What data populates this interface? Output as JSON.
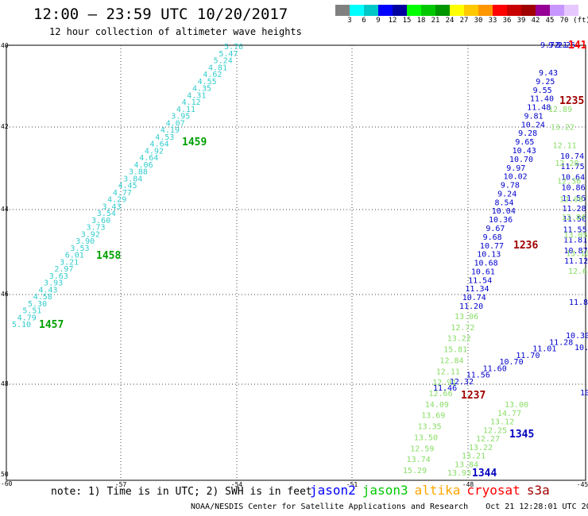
{
  "header": {
    "title": "12:00 – 23:59 UTC 10/20/2017",
    "subtitle": "12 hour collection of altimeter wave heights"
  },
  "legend": {
    "unit": "(ft)",
    "colors": [
      "#808080",
      "#00ffff",
      "#00c8c8",
      "#0000ff",
      "#0000a0",
      "#00ff00",
      "#00c800",
      "#009600",
      "#ffff00",
      "#ffc800",
      "#ff9600",
      "#ff0000",
      "#c80000",
      "#a00000",
      "#960096",
      "#c896ff",
      "#e6c8ff",
      "#ffffff"
    ],
    "labels": [
      "3",
      "6",
      "9",
      "12",
      "15",
      "18",
      "21",
      "24",
      "27",
      "30",
      "33",
      "36",
      "39",
      "42",
      "45",
      "70"
    ]
  },
  "axes": {
    "lon_labels": [
      "-57",
      "-54",
      "-51",
      "-48",
      "-45"
    ],
    "lat_labels": [
      "40",
      "42",
      "44",
      "46",
      "48",
      "50"
    ],
    "corner_labels": [
      "-60",
      "-60"
    ]
  },
  "track_times": [
    {
      "text": "1459",
      "color": "#00a000"
    },
    {
      "text": "1458",
      "color": "#00a000"
    },
    {
      "text": "1457",
      "color": "#00a000"
    },
    {
      "text": "1235",
      "color": "#a00000"
    },
    {
      "text": "1236",
      "color": "#a00000"
    },
    {
      "text": "1237",
      "color": "#a00000"
    },
    {
      "text": "1345",
      "color": "#0000c0"
    },
    {
      "text": "1344",
      "color": "#0000c0"
    },
    {
      "text": "141",
      "color": "#ff0000"
    }
  ],
  "tracks": {
    "cyan_track": [
      "5.76",
      "5.47",
      "5.24",
      "4.81",
      "4.62",
      "4.55",
      "4.35",
      "4.31",
      "4.12",
      "4.11",
      "3.95",
      "4.07",
      "4.19",
      "4.53",
      "4.64",
      "4.92",
      "4.64",
      "4.06",
      "3.88",
      "3.84",
      "4.45",
      "4.77",
      "4.29",
      "3.43",
      "3.54",
      "3.60",
      "3.73",
      "3.92",
      "3.90",
      "3.53",
      "6.01",
      "3.21",
      "2.97",
      "3.63",
      "3.93",
      "4.43",
      "4.58",
      "5.30",
      "5.51",
      "4.79",
      "5.10"
    ],
    "blue_track": [
      "9.43",
      "9.25",
      "9.55",
      "11.40",
      "11.48",
      "9.81",
      "10.24",
      "9.28",
      "9.65",
      "10.43",
      "10.70",
      "9.97",
      "10.02",
      "9.78",
      "9.24",
      "8.54",
      "10.04",
      "10.36",
      "9.67",
      "9.68",
      "10.77",
      "10.13",
      "10.68",
      "10.61",
      "11.54",
      "11.34",
      "10.74",
      "11.20"
    ],
    "green_track": [
      "13.06",
      "12.72",
      "13.22",
      "15.81",
      "12.84",
      "12.11",
      "12.91",
      "12.66",
      "14.09",
      "13.69",
      "13.35",
      "13.50",
      "12.59",
      "13.74",
      "15.29"
    ],
    "green_track2": [
      "13.00",
      "14.77",
      "13.12",
      "12.25",
      "12.27",
      "13.22",
      "13.21",
      "13.84",
      "13.93"
    ],
    "blue_track2": [
      "11.46",
      "12.32",
      "11.56",
      "11.60",
      "10.70",
      "11.70",
      "11.01",
      "11.28",
      "10.30"
    ],
    "right_blue": [
      "10.74",
      "11.75",
      "10.64",
      "10.86",
      "11.56",
      "11.28",
      "11.56",
      "11.55",
      "11.81",
      "10.87",
      "11.12"
    ],
    "right_green": [
      "12.89",
      "13.22",
      "12.11",
      "12.28",
      "12.36",
      "12.08",
      "12.84",
      "13.05",
      "13.10",
      "12.68"
    ],
    "top_numbers": [
      "9.72",
      "9.21",
      "9.26"
    ],
    "misc": [
      "11.8",
      "10.3",
      "10"
    ]
  },
  "footer": {
    "note": "note:  1) Time is in UTC;  2) SWH is in feet",
    "satellites": [
      {
        "name": "jason2",
        "color": "#0000ff"
      },
      {
        "name": "jason3",
        "color": "#00c800"
      },
      {
        "name": "altika",
        "color": "#ffa500"
      },
      {
        "name": "cryosat",
        "color": "#ff0000"
      },
      {
        "name": "s3a",
        "color": "#a00000"
      }
    ],
    "credit": "NOAA/NESDIS Center for Satellite Applications and Research",
    "timestamp": "Oct 21 12:28:01 UTC 2017"
  }
}
